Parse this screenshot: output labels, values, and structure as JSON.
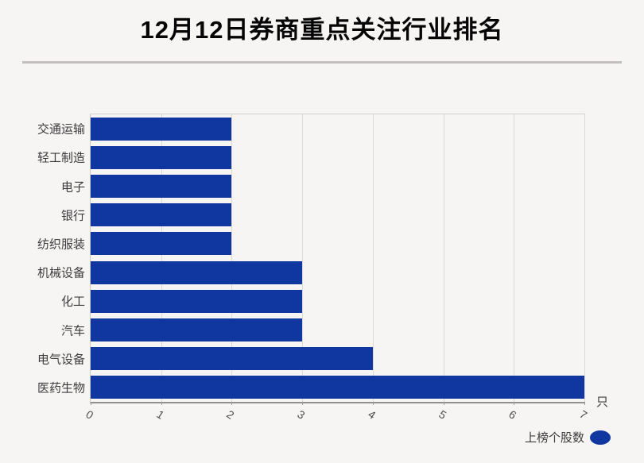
{
  "title": "12月12日券商重点关注行业排名",
  "chart_data": {
    "type": "bar",
    "orientation": "horizontal",
    "title": "12月12日券商重点关注行业排名",
    "categories": [
      "交通运输",
      "轻工制造",
      "电子",
      "银行",
      "纺织服装",
      "机械设备",
      "化工",
      "汽车",
      "电气设备",
      "医药生物"
    ],
    "series": [
      {
        "name": "上榜个股数",
        "values": [
          2,
          2,
          2,
          2,
          2,
          3,
          3,
          3,
          4,
          7
        ]
      }
    ],
    "xlabel": "",
    "ylabel": "",
    "unit_label": "只",
    "xlim": [
      0,
      7
    ],
    "x_ticks": [
      0,
      1,
      2,
      3,
      4,
      5,
      6,
      7
    ],
    "grid": true,
    "legend": "上榜个股数",
    "legend_position": "bottom-right"
  },
  "colors": {
    "bar": "#10379F",
    "background": "#F7F4F4",
    "gridline": "#DCD8D8",
    "axis_line": "#8F8F8F",
    "title_text": "#050505",
    "label_text": "#3C3C3C",
    "tick_text": "#4D4D4D",
    "divider": "#C3BFBF"
  }
}
